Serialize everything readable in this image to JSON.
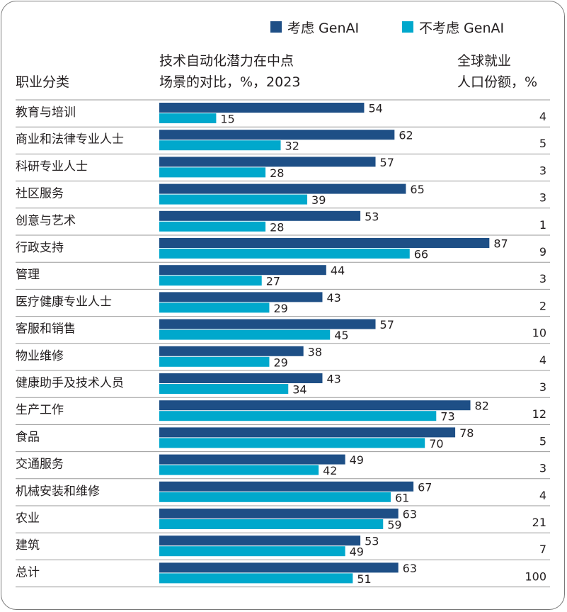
{
  "chart_data": {
    "type": "bar",
    "orientation": "horizontal",
    "legend": [
      {
        "name": "考虑 GenAI",
        "color": "#1e4f86"
      },
      {
        "name": "不考虑 GenAI",
        "color": "#00a8cc"
      }
    ],
    "headers": {
      "category": "职业分类",
      "bars_line1": "技术自动化潜力在中点",
      "bars_line2": "场景的对比，%，2023",
      "share_line1": "全球就业",
      "share_line2": "人口份额，%"
    },
    "categories": [
      "教育与培训",
      "商业和法律专业人士",
      "科研专业人士",
      "社区服务",
      "创意与艺术",
      "行政支持",
      "管理",
      "医疗健康专业人士",
      "客服和销售",
      "物业维修",
      "健康助手及技术人员",
      "生产工作",
      "食品",
      "交通服务",
      "机械安装和维修",
      "农业",
      "建筑",
      "总计"
    ],
    "series": [
      {
        "name": "考虑 GenAI",
        "values": [
          54,
          62,
          57,
          65,
          53,
          87,
          44,
          43,
          57,
          38,
          43,
          82,
          78,
          49,
          67,
          63,
          53,
          63
        ]
      },
      {
        "name": "不考虑 GenAI",
        "values": [
          15,
          32,
          28,
          39,
          28,
          66,
          27,
          29,
          45,
          29,
          34,
          73,
          70,
          42,
          61,
          59,
          49,
          51
        ]
      }
    ],
    "employment_share": [
      4,
      5,
      3,
      3,
      1,
      9,
      3,
      2,
      10,
      4,
      3,
      12,
      5,
      3,
      4,
      21,
      7,
      100
    ],
    "xlim": [
      0,
      100
    ]
  }
}
